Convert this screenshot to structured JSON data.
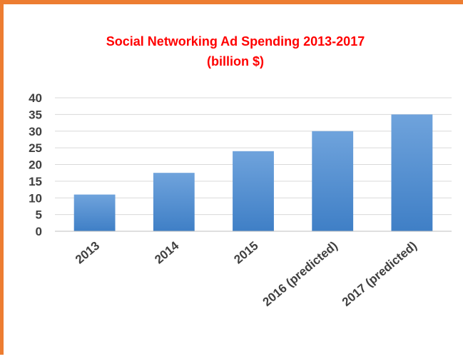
{
  "chart_data": {
    "type": "bar",
    "title": "Social Networking Ad Spending 2013-2017",
    "subtitle": "(billion $)",
    "categories": [
      "2013",
      "2014",
      "2015",
      "2016 (predicted)",
      "2017 (predicted)"
    ],
    "values": [
      11,
      17.5,
      24,
      30,
      35
    ],
    "ylim": [
      0,
      40
    ],
    "yticks": [
      "0",
      "5",
      "10",
      "15",
      "20",
      "25",
      "30",
      "35",
      "40"
    ],
    "grid": true,
    "legend": "none",
    "colors": {
      "bar_top": "#6fa3dc",
      "bar_bottom": "#3f7fc6",
      "title": "#ff0000",
      "frame": "#ed7d31",
      "grid": "#d9d9d9",
      "text": "#404040"
    }
  }
}
